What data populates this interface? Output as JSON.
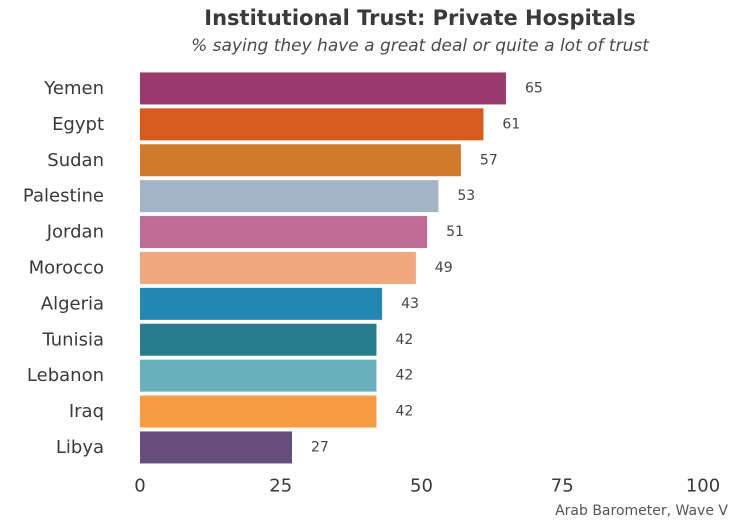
{
  "chart_data": {
    "type": "bar",
    "orientation": "horizontal",
    "title": "Institutional Trust: Private Hospitals",
    "subtitle": "% saying they have a great deal or quite a lot of trust",
    "caption": "Arab Barometer, Wave V",
    "categories": [
      "Yemen",
      "Egypt",
      "Sudan",
      "Palestine",
      "Jordan",
      "Morocco",
      "Algeria",
      "Tunisia",
      "Lebanon",
      "Iraq",
      "Libya"
    ],
    "values": [
      65,
      61,
      57,
      53,
      51,
      49,
      43,
      42,
      42,
      42,
      27
    ],
    "colors": [
      "#9b3a6e",
      "#d95a1e",
      "#d07a2c",
      "#a2b5c6",
      "#c16c96",
      "#f2a87e",
      "#2287b3",
      "#277d8c",
      "#69b0bd",
      "#f89c42",
      "#654d7e"
    ],
    "xlim": [
      0,
      100
    ],
    "xticks": [
      0,
      25,
      50,
      75,
      100
    ],
    "grid": false,
    "legend": "none"
  }
}
